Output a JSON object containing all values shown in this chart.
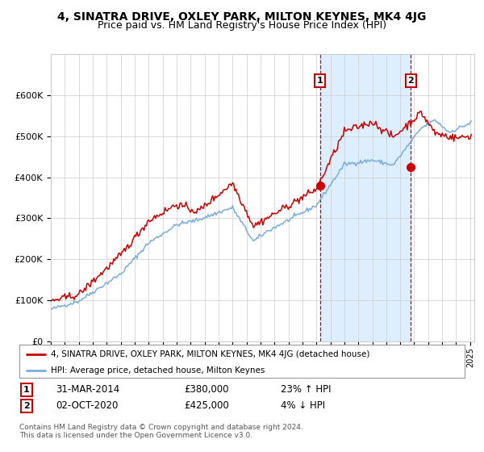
{
  "title": "4, SINATRA DRIVE, OXLEY PARK, MILTON KEYNES, MK4 4JG",
  "subtitle": "Price paid vs. HM Land Registry's House Price Index (HPI)",
  "legend_line1": "4, SINATRA DRIVE, OXLEY PARK, MILTON KEYNES, MK4 4JG (detached house)",
  "legend_line2": "HPI: Average price, detached house, Milton Keynes",
  "annotation1": {
    "label": "1",
    "date_str": "31-MAR-2014",
    "price": "£380,000",
    "pct": "23% ↑ HPI"
  },
  "annotation2": {
    "label": "2",
    "date_str": "02-OCT-2020",
    "price": "£425,000",
    "pct": "4% ↓ HPI"
  },
  "footer": "Contains HM Land Registry data © Crown copyright and database right 2024.\nThis data is licensed under the Open Government Licence v3.0.",
  "red_color": "#cc0000",
  "blue_color": "#7aaddb",
  "shade_color": "#ddeeff",
  "dashed_color": "#cc0000",
  "bg_color": "#ffffff",
  "grid_color": "#cccccc",
  "ylim": [
    0,
    700000
  ],
  "sale1_year": 2014.25,
  "sale1_price": 380000,
  "sale2_year": 2020.75,
  "sale2_price": 425000
}
